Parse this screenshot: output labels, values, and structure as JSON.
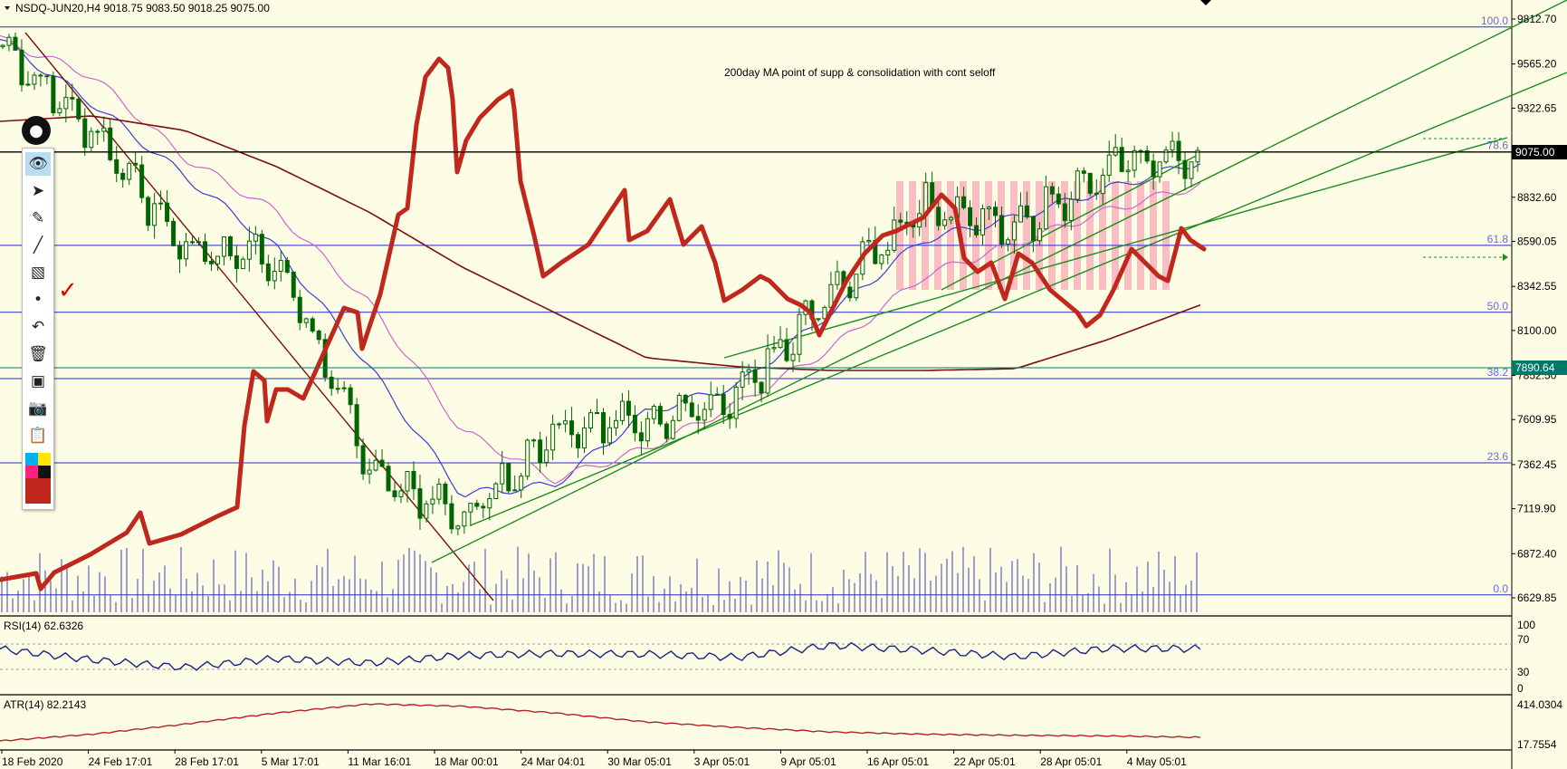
{
  "header": {
    "symbol_line": "NSDQ-JUN20,H4  9018.75 9083.50 9018.25 9075.00"
  },
  "note": "200day MA point of supp & consolidation with cont seloff",
  "current_price": "9075.00",
  "marked_price": "7890.64",
  "fibonacci": [
    {
      "level": "100.0",
      "price": 9769
    },
    {
      "level": "78.6",
      "price": 9083
    },
    {
      "level": "61.8",
      "price": 8568
    },
    {
      "level": "50.0",
      "price": 8200
    },
    {
      "level": "38.2",
      "price": 7835
    },
    {
      "level": "23.6",
      "price": 7372
    },
    {
      "level": "0.0",
      "price": 6646
    }
  ],
  "price_axis": [
    "9812.70",
    "9565.20",
    "9322.65",
    "9075.00",
    "8832.60",
    "8590.05",
    "8342.55",
    "8100.00",
    "7852.50",
    "7609.95",
    "7362.45",
    "7119.90",
    "6872.40",
    "6629.85"
  ],
  "time_axis": [
    "18 Feb 2020",
    "24 Feb 17:01",
    "28 Feb 17:01",
    "5 Mar 17:01",
    "11 Mar 16:01",
    "18 Mar 00:01",
    "24 Mar 04:01",
    "30 Mar 05:01",
    "3 Apr 05:01",
    "9 Apr 05:01",
    "16 Apr 05:01",
    "22 Apr 05:01",
    "28 Apr 05:01",
    "4 May 05:01"
  ],
  "rsi": {
    "label": "RSI(14) 62.6326",
    "axis": [
      "100",
      "70",
      "30",
      "0"
    ]
  },
  "atr": {
    "label": "ATR(14) 82.2143",
    "axis": [
      "414.0304",
      "17.7554"
    ]
  },
  "toolbar_icons": [
    "eye-icon",
    "cursor-icon",
    "pencil-icon",
    "line-icon",
    "eraser-icon",
    "dot-icon",
    "undo-icon",
    "trash-icon",
    "stamp-icon",
    "camera-icon",
    "clipboard-icon"
  ],
  "colors": {
    "background": "#fdfde6",
    "candle": "#006400",
    "fib_line": "#2a2ad0",
    "ma_fast": "#3b3bd6",
    "ma_mid": "#cc66cc",
    "ma_200": "#7a1010",
    "trendline": "#1e8a1e",
    "drawing": "#c0281e",
    "consolidation": "#f5a8b8",
    "rsi_line": "#1a237e",
    "atr_line": "#b22222",
    "current_price_bg": "#000000",
    "marked_price_bg": "#00796b"
  },
  "chart_data": [
    {
      "type": "candlestick",
      "title": "NSDQ-JUN20,H4",
      "ohlc_last": {
        "open": 9018.75,
        "high": 9083.5,
        "low": 9018.25,
        "close": 9075.0
      },
      "ylim": [
        6560,
        9880
      ],
      "x": [
        "18 Feb 2020",
        "24 Feb 17:01",
        "28 Feb 17:01",
        "5 Mar 17:01",
        "11 Mar 16:01",
        "18 Mar 00:01",
        "24 Mar 04:01",
        "30 Mar 05:01",
        "3 Apr 05:01",
        "9 Apr 05:01",
        "16 Apr 05:01",
        "22 Apr 05:01",
        "28 Apr 05:01",
        "4 May 05:01"
      ],
      "price_path": [
        {
          "x": "18 Feb 2020",
          "close": 9660
        },
        {
          "x": "24 Feb 17:01",
          "close": 9180
        },
        {
          "x": "28 Feb 17:01",
          "close": 8550
        },
        {
          "x": "5 Mar 17:01",
          "close": 8500
        },
        {
          "x": "11 Mar 16:01",
          "close": 7350
        },
        {
          "x": "18 Mar 00:01",
          "close": 7050
        },
        {
          "x": "24 Mar 04:01",
          "close": 7550
        },
        {
          "x": "30 Mar 05:01",
          "close": 7600
        },
        {
          "x": "3 Apr 05:01",
          "close": 7750
        },
        {
          "x": "9 Apr 05:01",
          "close": 8300
        },
        {
          "x": "16 Apr 05:01",
          "close": 8780
        },
        {
          "x": "22 Apr 05:01",
          "close": 8650
        },
        {
          "x": "28 Apr 05:01",
          "close": 9000
        },
        {
          "x": "4 May 05:01",
          "close": 9075
        }
      ],
      "moving_averages": [
        {
          "name": "MA fast",
          "values": [
            9700,
            9350,
            8950,
            8550,
            7900,
            7200,
            7250,
            7650,
            7800,
            8200,
            8600,
            8720,
            8880,
            9030
          ]
        },
        {
          "name": "MA medium",
          "values": [
            9700,
            9500,
            9050,
            8750,
            8250,
            7550,
            7280,
            7450,
            7700,
            8000,
            8400,
            8580,
            8760,
            8900
          ]
        },
        {
          "name": "MA 200",
          "values": [
            9250,
            9280,
            9200,
            9000,
            8750,
            8450,
            8200,
            7950,
            7900,
            7880,
            7880,
            7890,
            8050,
            8240
          ]
        }
      ],
      "fib_levels": [
        {
          "level": "100.0",
          "price": 9769
        },
        {
          "level": "78.6",
          "price": 9083
        },
        {
          "level": "61.8",
          "price": 8568
        },
        {
          "level": "50.0",
          "price": 8200
        },
        {
          "level": "38.2",
          "price": 7835
        },
        {
          "level": "23.6",
          "price": 7372
        },
        {
          "level": "0.0",
          "price": 6646
        }
      ]
    },
    {
      "type": "line",
      "title": "RSI(14) 62.6326",
      "ylim": [
        0,
        100
      ],
      "levels": [
        70,
        30
      ],
      "x": [
        "18 Feb 2020",
        "24 Feb 17:01",
        "28 Feb 17:01",
        "5 Mar 17:01",
        "11 Mar 16:01",
        "18 Mar 00:01",
        "24 Mar 04:01",
        "30 Mar 05:01",
        "3 Apr 05:01",
        "9 Apr 05:01",
        "16 Apr 05:01",
        "22 Apr 05:01",
        "28 Apr 05:01",
        "4 May 05:01"
      ],
      "values": [
        62,
        45,
        33,
        47,
        40,
        52,
        55,
        54,
        49,
        68,
        60,
        50,
        63,
        62.6
      ]
    },
    {
      "type": "line",
      "title": "ATR(14) 82.2143",
      "ylim": [
        17.7554,
        414.0304
      ],
      "x": [
        "18 Feb 2020",
        "24 Feb 17:01",
        "28 Feb 17:01",
        "5 Mar 17:01",
        "11 Mar 16:01",
        "18 Mar 00:01",
        "24 Mar 04:01",
        "30 Mar 05:01",
        "3 Apr 05:01",
        "9 Apr 05:01",
        "16 Apr 05:01",
        "22 Apr 05:01",
        "28 Apr 05:01",
        "4 May 05:01"
      ],
      "values": [
        50,
        110,
        200,
        300,
        380,
        360,
        300,
        220,
        170,
        130,
        110,
        100,
        95,
        82.2
      ]
    }
  ]
}
